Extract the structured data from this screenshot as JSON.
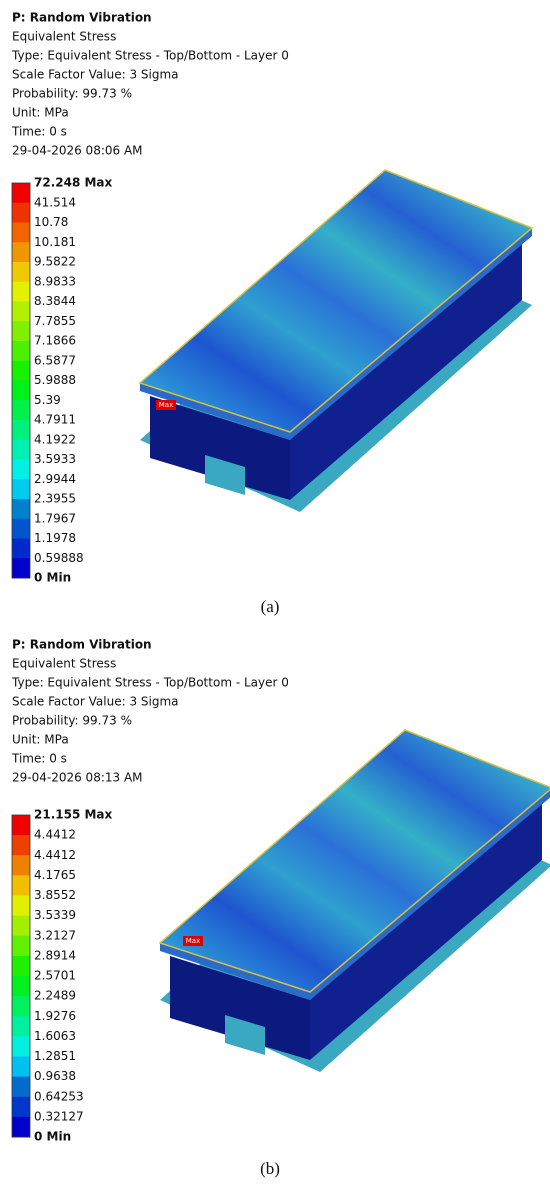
{
  "panels": [
    {
      "header": [
        "P: Random Vibration",
        "Equivalent Stress",
        "Type: Equivalent Stress - Top/Bottom - Layer 0",
        "Scale Factor Value: 3 Sigma",
        "Probability: 99.73 %",
        "Unit: MPa",
        "Time: 0 s",
        "29-04-2026 08:06 AM"
      ],
      "legend": [
        "72.248 Max",
        "41.514",
        "10.78",
        "10.181",
        "9.5822",
        "8.9833",
        "8.3844",
        "7.7855",
        "7.1866",
        "6.5877",
        "5.9888",
        "5.39",
        "4.7911",
        "4.1922",
        "3.5933",
        "2.9944",
        "2.3955",
        "1.7967",
        "1.1978",
        "0.59888",
        "0 Min"
      ],
      "max_marker": "Max",
      "caption": "(a)"
    },
    {
      "header": [
        "P: Random Vibration",
        "Equivalent Stress",
        "Type: Equivalent Stress - Top/Bottom - Layer 0",
        "Scale Factor Value: 3 Sigma",
        "Probability: 99.73 %",
        "Unit: MPa",
        "Time: 0 s",
        "29-04-2026 08:13 AM"
      ],
      "legend": [
        "21.155 Max",
        "4.4412",
        "4.4412",
        "4.1765",
        "3.8552",
        "3.5339",
        "3.2127",
        "2.8914",
        "2.5701",
        "2.2489",
        "1.9276",
        "1.6063",
        "1.2851",
        "0.9638",
        "0.64253",
        "0.32127",
        "0 Min"
      ],
      "max_marker": "Max",
      "caption": "(b)"
    }
  ]
}
